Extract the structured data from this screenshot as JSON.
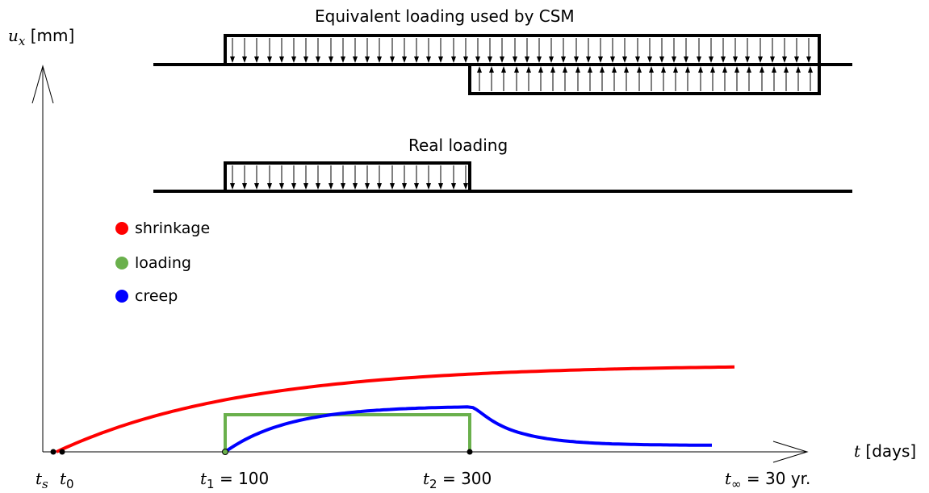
{
  "title_equivalent": "Equivalent loading used by CSM",
  "title_real": "Real loading",
  "y_axis": {
    "var": "u",
    "sub": "x",
    "unit": "[mm]"
  },
  "x_axis": {
    "var": "t",
    "unit": "[days]"
  },
  "ticks": {
    "ts": {
      "var": "t",
      "sub": "s"
    },
    "t0": {
      "var": "t",
      "sub": "0"
    },
    "t1": {
      "var": "t",
      "sub": "1",
      "value": "= 100"
    },
    "t2": {
      "var": "t",
      "sub": "2",
      "value": "= 300"
    },
    "tinf": {
      "var": "t",
      "sub": "∞",
      "value": "= 30 yr."
    }
  },
  "legend": [
    {
      "label": "shrinkage",
      "color": "#ff0000"
    },
    {
      "label": "loading",
      "color": "#6ab04c"
    },
    {
      "label": "creep",
      "color": "#0000ff"
    }
  ],
  "colors": {
    "shrinkage": "#ff0000",
    "loading": "#6ab04c",
    "creep": "#0000ff",
    "ink": "#000000"
  }
}
